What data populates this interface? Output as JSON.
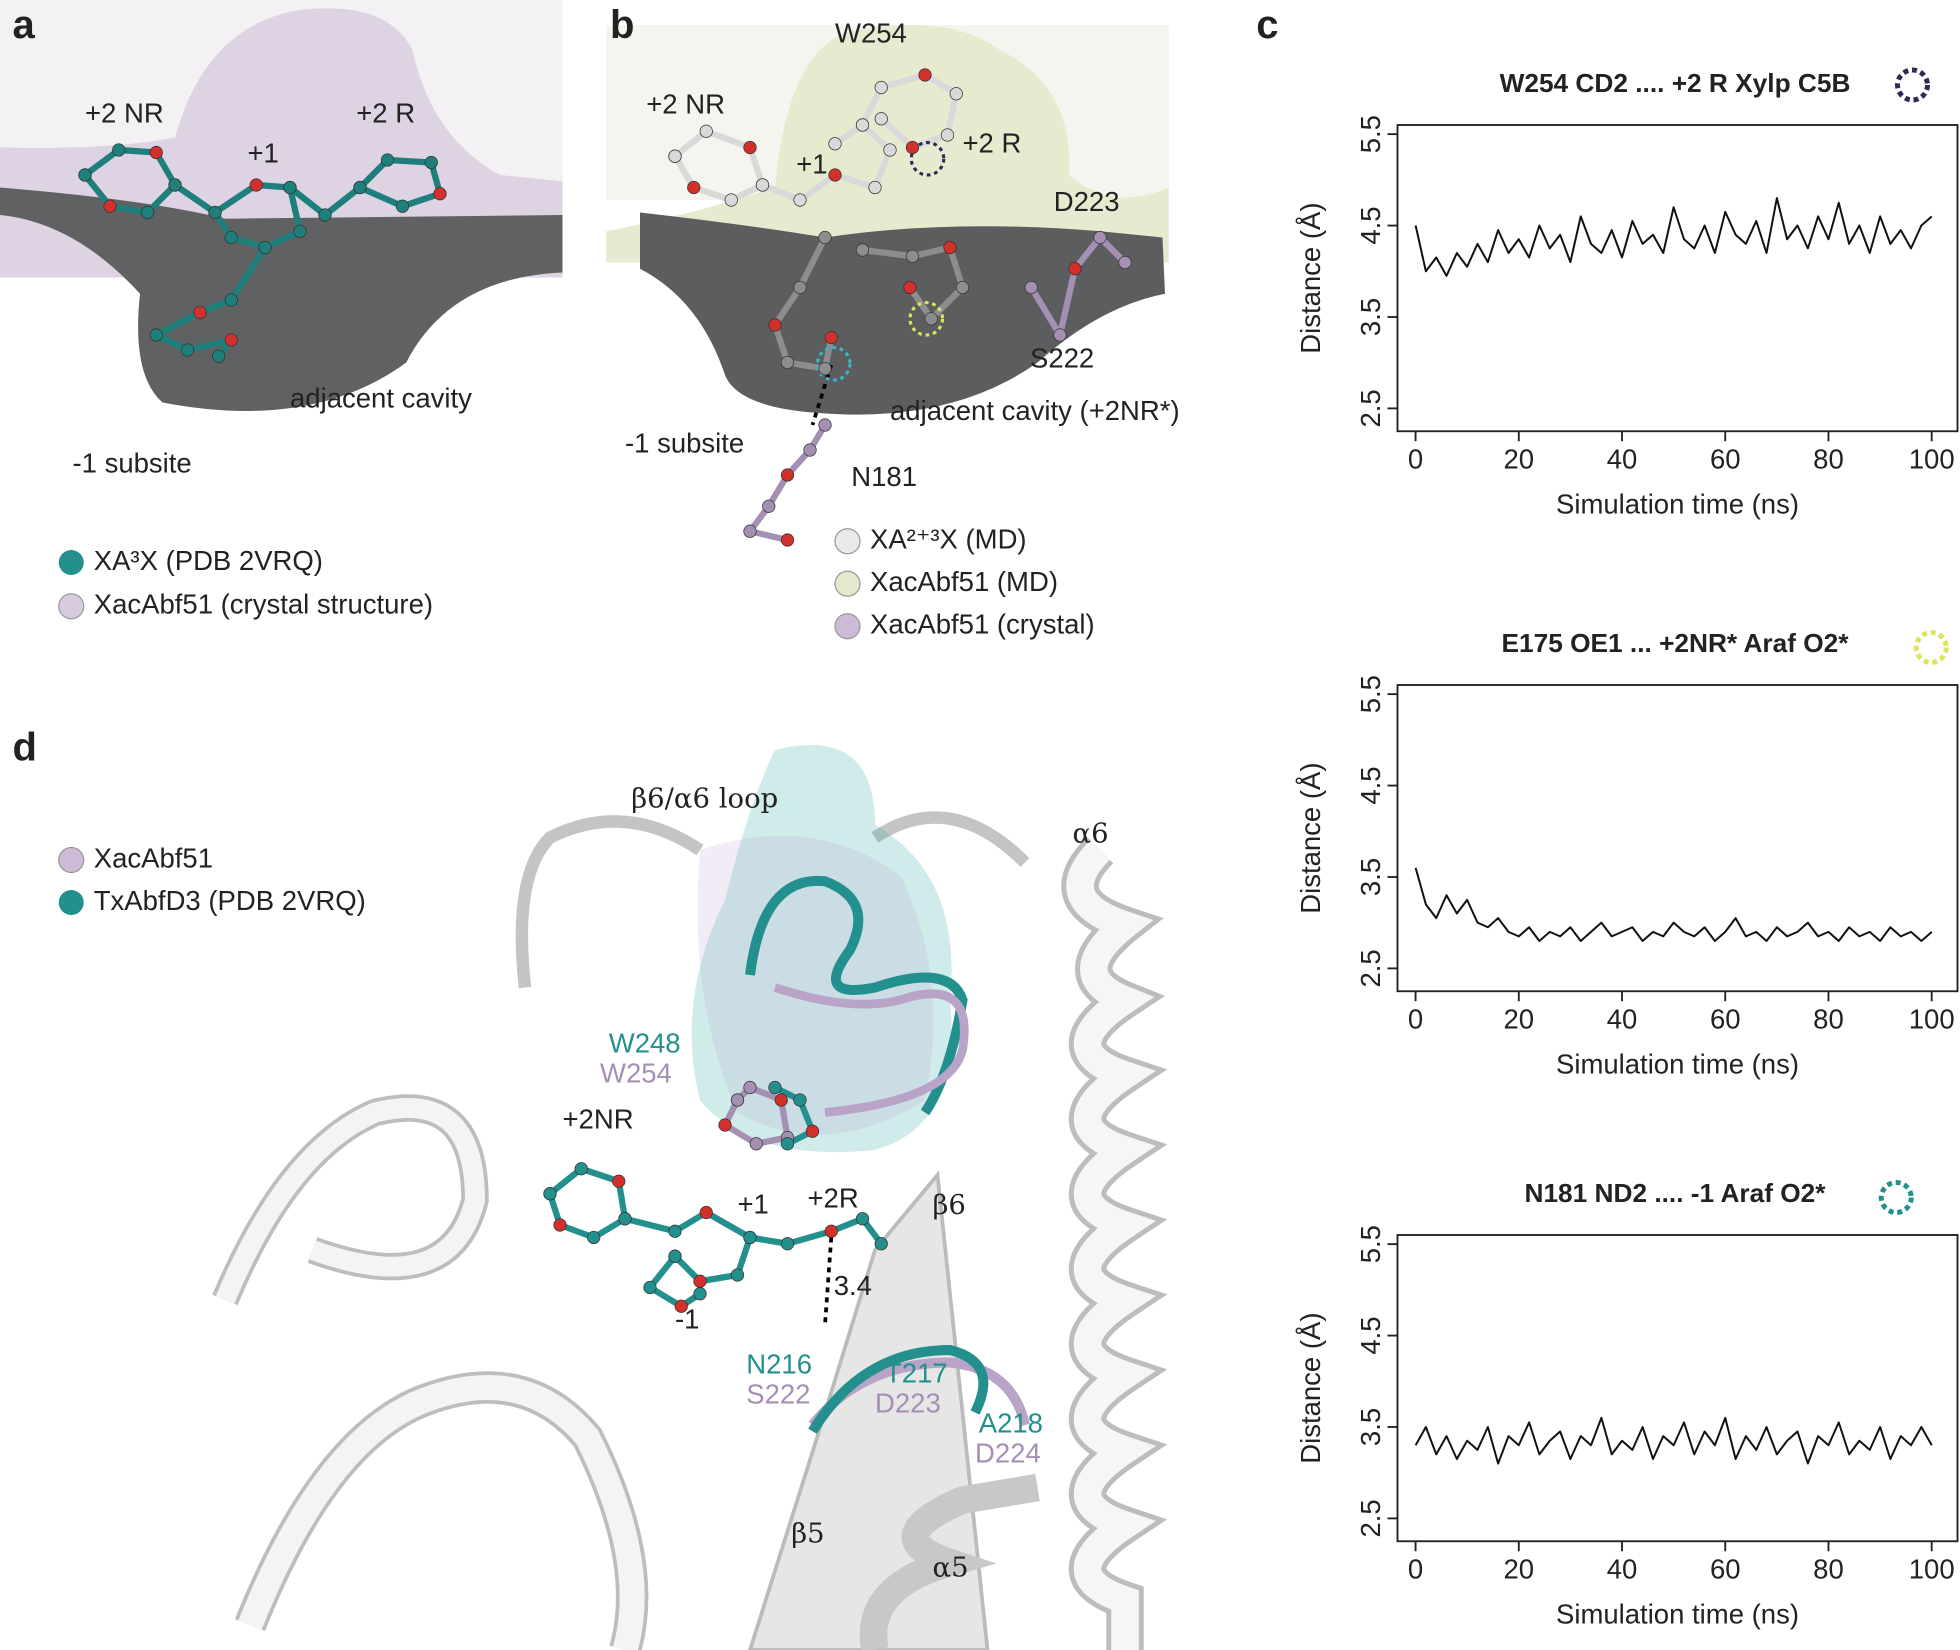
{
  "panels": {
    "a": {
      "label": "a",
      "site_labels": [
        "+2 NR",
        "+1",
        "+2 R",
        "adjacent cavity",
        "-1 subsite"
      ],
      "legend": [
        "XA³X (PDB 2VRQ)",
        "XacAbf51 (crystal structure)"
      ]
    },
    "b": {
      "label": "b",
      "site_labels": [
        "W254",
        "+2 NR",
        "+1",
        "+2 R",
        "D223",
        "S222",
        "adjacent cavity (+2NR*)",
        "-1 subsite",
        "N181"
      ],
      "legend": [
        "XA²⁺³X (MD)",
        "XacAbf51 (MD)",
        "XacAbf51 (crystal)"
      ]
    },
    "c": {
      "label": "c"
    },
    "d": {
      "label": "d",
      "structure_labels": [
        "β6/α6 loop",
        "α6",
        "W248",
        "W254",
        "+2NR",
        "+1",
        "+2R",
        "β6",
        "3.4",
        "-1",
        "N216",
        "S222",
        "T217",
        "D223",
        "A218",
        "D224",
        "β5",
        "α5"
      ],
      "legend": [
        "XacAbf51",
        "TxAbfD3 (PDB 2VRQ)"
      ]
    }
  },
  "chart_data": [
    {
      "type": "line",
      "title": "W254 CD2 .... +2 R Xylp C5B",
      "x_label": "Simulation time (ns)",
      "y_label": "Distance (Å)",
      "x": [
        0,
        2,
        4,
        6,
        8,
        10,
        12,
        14,
        16,
        18,
        20,
        22,
        24,
        26,
        28,
        30,
        32,
        34,
        36,
        38,
        40,
        42,
        44,
        46,
        48,
        50,
        52,
        54,
        56,
        58,
        60,
        62,
        64,
        66,
        68,
        70,
        72,
        74,
        76,
        78,
        80,
        82,
        84,
        86,
        88,
        90,
        92,
        94,
        96,
        98,
        100
      ],
      "color": "#111111",
      "values": [
        4.5,
        4.0,
        4.15,
        3.95,
        4.2,
        4.05,
        4.3,
        4.1,
        4.45,
        4.2,
        4.35,
        4.15,
        4.5,
        4.25,
        4.4,
        4.1,
        4.6,
        4.3,
        4.2,
        4.45,
        4.15,
        4.55,
        4.3,
        4.4,
        4.2,
        4.7,
        4.35,
        4.25,
        4.5,
        4.2,
        4.65,
        4.4,
        4.3,
        4.55,
        4.2,
        4.8,
        4.35,
        4.5,
        4.25,
        4.6,
        4.35,
        4.75,
        4.3,
        4.5,
        4.2,
        4.6,
        4.3,
        4.45,
        4.25,
        4.5,
        4.6
      ],
      "xlim": [
        -3.5,
        105
      ],
      "ylim": [
        2.25,
        5.6
      ],
      "xticks": [
        0,
        20,
        40,
        60,
        80,
        100
      ],
      "yticks": [
        2.5,
        3.5,
        4.5,
        5.5
      ]
    },
    {
      "type": "line",
      "title": "E175 OE1 ... +2NR* Araf O2*",
      "x_label": "Simulation time (ns)",
      "y_label": "Distance (Å)",
      "x": [
        0,
        2,
        4,
        6,
        8,
        10,
        12,
        14,
        16,
        18,
        20,
        22,
        24,
        26,
        28,
        30,
        32,
        34,
        36,
        38,
        40,
        42,
        44,
        46,
        48,
        50,
        52,
        54,
        56,
        58,
        60,
        62,
        64,
        66,
        68,
        70,
        72,
        74,
        76,
        78,
        80,
        82,
        84,
        86,
        88,
        90,
        92,
        94,
        96,
        98,
        100
      ],
      "color": "#111111",
      "values": [
        3.6,
        3.2,
        3.05,
        3.3,
        3.1,
        3.25,
        3.0,
        2.95,
        3.05,
        2.9,
        2.85,
        2.95,
        2.8,
        2.9,
        2.85,
        2.95,
        2.8,
        2.9,
        3.0,
        2.85,
        2.9,
        2.95,
        2.8,
        2.9,
        2.85,
        3.0,
        2.9,
        2.85,
        2.95,
        2.8,
        2.9,
        3.05,
        2.85,
        2.9,
        2.8,
        2.95,
        2.85,
        2.9,
        3.0,
        2.85,
        2.9,
        2.8,
        2.95,
        2.85,
        2.9,
        2.8,
        2.95,
        2.85,
        2.9,
        2.8,
        2.9
      ],
      "xlim": [
        -3.5,
        105
      ],
      "ylim": [
        2.25,
        5.6
      ],
      "xticks": [
        0,
        20,
        40,
        60,
        80,
        100
      ],
      "yticks": [
        2.5,
        3.5,
        4.5,
        5.5
      ]
    },
    {
      "type": "line",
      "title": "N181 ND2 .... -1  Araf O2*",
      "x_label": "Simulation time (ns)",
      "y_label": "Distance (Å)",
      "x": [
        0,
        2,
        4,
        6,
        8,
        10,
        12,
        14,
        16,
        18,
        20,
        22,
        24,
        26,
        28,
        30,
        32,
        34,
        36,
        38,
        40,
        42,
        44,
        46,
        48,
        50,
        52,
        54,
        56,
        58,
        60,
        62,
        64,
        66,
        68,
        70,
        72,
        74,
        76,
        78,
        80,
        82,
        84,
        86,
        88,
        90,
        92,
        94,
        96,
        98,
        100
      ],
      "color": "#111111",
      "values": [
        3.3,
        3.5,
        3.2,
        3.4,
        3.15,
        3.35,
        3.25,
        3.5,
        3.1,
        3.4,
        3.3,
        3.55,
        3.2,
        3.35,
        3.45,
        3.15,
        3.4,
        3.3,
        3.6,
        3.2,
        3.35,
        3.25,
        3.5,
        3.15,
        3.4,
        3.3,
        3.55,
        3.2,
        3.45,
        3.3,
        3.6,
        3.15,
        3.4,
        3.25,
        3.5,
        3.2,
        3.35,
        3.45,
        3.1,
        3.4,
        3.3,
        3.55,
        3.2,
        3.35,
        3.25,
        3.5,
        3.15,
        3.4,
        3.3,
        3.5,
        3.3
      ],
      "xlim": [
        -3.5,
        105
      ],
      "ylim": [
        2.25,
        5.6
      ],
      "xticks": [
        0,
        20,
        40,
        60,
        80,
        100
      ],
      "yticks": [
        2.5,
        3.5,
        4.5,
        5.5
      ]
    }
  ]
}
